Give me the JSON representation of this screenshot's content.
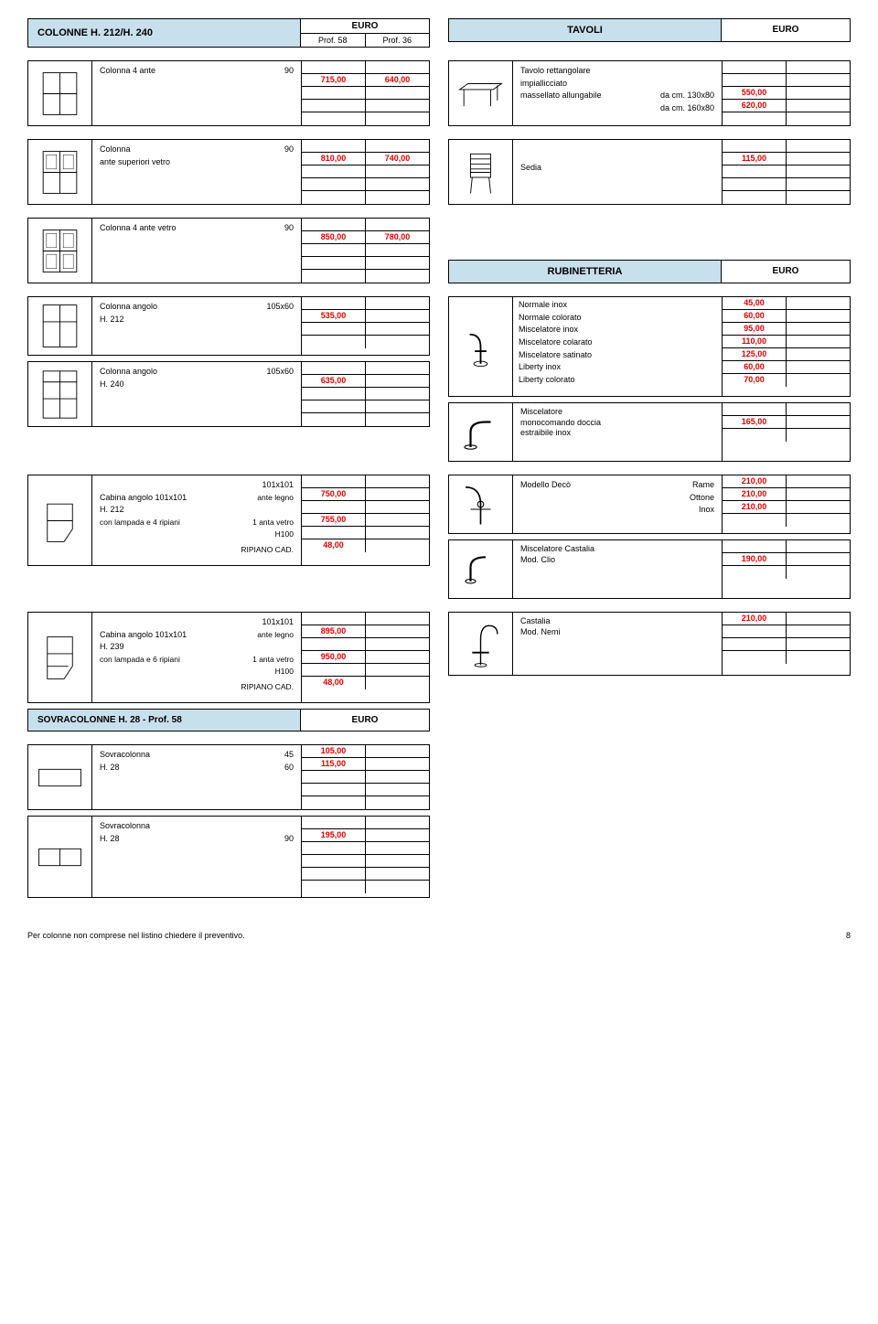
{
  "top_left": {
    "title": "COLONNE H. 212/H. 240",
    "euro": "EURO",
    "p58": "Prof. 58",
    "p36": "Prof. 36"
  },
  "top_right": {
    "title": "TAVOLI",
    "euro": "EURO"
  },
  "items_left": {
    "colonna4": {
      "name": "Colonna 4 ante",
      "size": "90",
      "p58": "715,00",
      "p36": "640,00"
    },
    "colonna_sup": {
      "name": "Colonna",
      "sub": "ante superiori vetro",
      "size": "90",
      "p58": "810,00",
      "p36": "740,00"
    },
    "colonna4v": {
      "name": "Colonna 4 ante vetro",
      "size": "90",
      "p58": "850,00",
      "p36": "780,00"
    },
    "ang212": {
      "name": "Colonna angolo",
      "sub": "H. 212",
      "size": "105x60",
      "val": "535,00"
    },
    "ang240": {
      "name": "Colonna angolo",
      "sub": "H. 240",
      "size": "105x60",
      "val": "635,00"
    },
    "cab212": {
      "name": "Cabina angolo 101x101",
      "sub": "H. 212",
      "sub2": "con lampada e 4 ripiani",
      "size": "101x101",
      "opt1": "ante legno",
      "v1": "750,00",
      "opt2": "1 anta vetro",
      "opt2b": "H100",
      "v2": "755,00",
      "rip": "RIPIANO CAD.",
      "ripv": "48,00"
    },
    "cab239": {
      "name": "Cabina angolo 101x101",
      "sub": "H. 239",
      "sub2": "con lampada e 6 ripiani",
      "size": "101x101",
      "opt1": "ante legno",
      "v1": "895,00",
      "opt2": "1 anta vetro",
      "opt2b": "H100",
      "v2": "950,00",
      "rip": "RIPIANO CAD.",
      "ripv": "48,00"
    }
  },
  "items_right": {
    "tavolo": {
      "l1": "Tavolo rettangolare",
      "l2": "impiallicciato",
      "l3": "massellato allungabile",
      "s1": "da cm. 130x80",
      "v1": "550,00",
      "s2": "da cm. 160x80",
      "v2": "620,00"
    },
    "sedia": {
      "name": "Sedia",
      "val": "115,00"
    }
  },
  "rub_hdr": {
    "title": "RUBINETTERIA",
    "euro": "EURO"
  },
  "rub": {
    "rows": [
      {
        "n": "Normale inox",
        "v": "45,00"
      },
      {
        "n": "Normale colorato",
        "v": "60,00"
      },
      {
        "n": "Miscelatore inox",
        "v": "95,00"
      },
      {
        "n": "Miscelatore colarato",
        "v": "110,00"
      },
      {
        "n": "Miscelatore satinato",
        "v": "125,00"
      },
      {
        "n": "Liberty inox",
        "v": "60,00"
      },
      {
        "n": "Liberty colorato",
        "v": "70,00"
      }
    ],
    "misc": {
      "l1": "Miscelatore",
      "l2": "monocomando doccia",
      "l3": "estraibile inox",
      "v": "165,00"
    },
    "deco": {
      "name": "Modello Decò",
      "o1": "Rame",
      "v1": "210,00",
      "o2": "Ottone",
      "v2": "210,00",
      "o3": "Inox",
      "v3": "210,00"
    },
    "clio": {
      "l1": "Miscelatore Castalia",
      "l2": "Mod. Clio",
      "v": "190,00"
    },
    "nemi": {
      "l1": "Castalia",
      "l2": "Mod. Nemi",
      "v": "210,00"
    }
  },
  "sovra_hdr": {
    "title": "SOVRACOLONNE H. 28 - Prof. 58",
    "euro": "EURO"
  },
  "sovra": {
    "s1": {
      "name": "Sovracolonna",
      "sub": "H. 28",
      "r1s": "45",
      "r1v": "105,00",
      "r2s": "60",
      "r2v": "115,00"
    },
    "s2": {
      "name": "Sovracolonna",
      "sub": "H. 28",
      "r1s": "90",
      "r1v": "195,00"
    }
  },
  "footer": {
    "note": "Per colonne non comprese nel listino chiedere il preventivo.",
    "page": "8"
  }
}
